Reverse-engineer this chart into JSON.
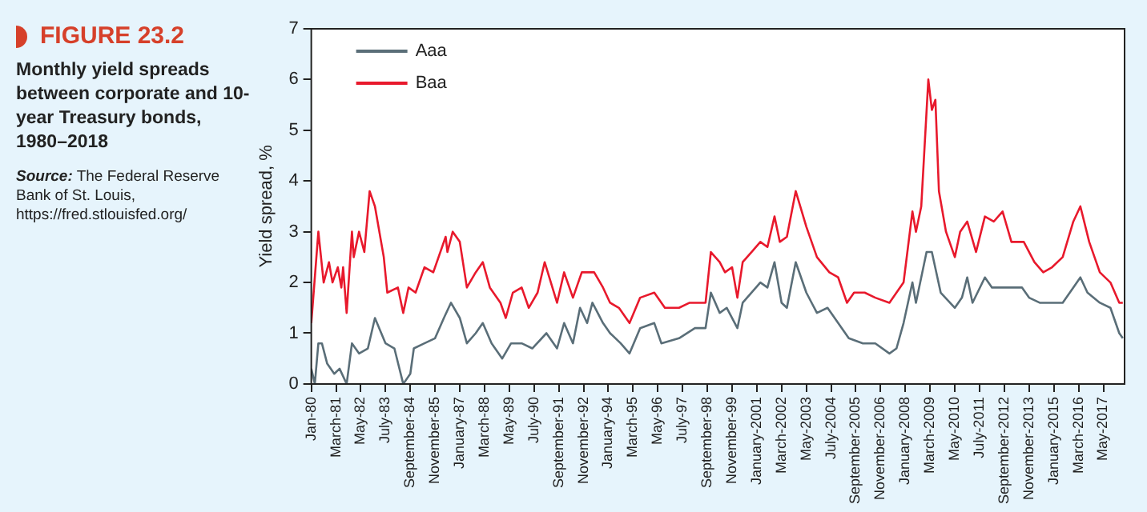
{
  "chart_data": {
    "type": "line",
    "title": "FIGURE 23.2",
    "subtitle": "Monthly yield spreads between corporate and 10-year Treasury bonds, 1980–2018",
    "ylabel": "Yield spread, %",
    "annotations": [
      "Source: The Federal Reserve Bank of St. Louis, https://fred.stlouisfed.org/"
    ],
    "xlim": [
      "1980-01",
      "2018-05"
    ],
    "ylim": [
      0,
      7
    ],
    "yticks": [
      0,
      1,
      2,
      3,
      4,
      5,
      6,
      7
    ],
    "xticks": [
      {
        "value": "1980-01",
        "label": "Jan-80"
      },
      {
        "value": "1981-03",
        "label": "March-81"
      },
      {
        "value": "1982-05",
        "label": "May-82"
      },
      {
        "value": "1983-07",
        "label": "July-83"
      },
      {
        "value": "1984-09",
        "label": "September-84"
      },
      {
        "value": "1985-11",
        "label": "November-85"
      },
      {
        "value": "1987-01",
        "label": "January-87"
      },
      {
        "value": "1988-03",
        "label": "March-88"
      },
      {
        "value": "1989-05",
        "label": "May-89"
      },
      {
        "value": "1990-07",
        "label": "July-90"
      },
      {
        "value": "1991-09",
        "label": "September-91"
      },
      {
        "value": "1992-11",
        "label": "November-92"
      },
      {
        "value": "1994-01",
        "label": "January-94"
      },
      {
        "value": "1995-03",
        "label": "March-95"
      },
      {
        "value": "1996-05",
        "label": "May-96"
      },
      {
        "value": "1997-07",
        "label": "July-97"
      },
      {
        "value": "1998-09",
        "label": "September-98"
      },
      {
        "value": "1999-11",
        "label": "November-99"
      },
      {
        "value": "2001-01",
        "label": "January-2001"
      },
      {
        "value": "2002-03",
        "label": "March-2002"
      },
      {
        "value": "2003-05",
        "label": "May-2003"
      },
      {
        "value": "2004-07",
        "label": "July-2004"
      },
      {
        "value": "2005-09",
        "label": "September-2005"
      },
      {
        "value": "2006-11",
        "label": "November-2006"
      },
      {
        "value": "2008-01",
        "label": "January-2008"
      },
      {
        "value": "2009-03",
        "label": "March-2009"
      },
      {
        "value": "2010-05",
        "label": "May-2010"
      },
      {
        "value": "2011-07",
        "label": "July-2011"
      },
      {
        "value": "2012-09",
        "label": "September-2012"
      },
      {
        "value": "2013-11",
        "label": "November-2013"
      },
      {
        "value": "2015-01",
        "label": "January-2015"
      },
      {
        "value": "2016-03",
        "label": "March-2016"
      },
      {
        "value": "2017-05",
        "label": "May-2017"
      }
    ],
    "legend": "top left",
    "marker": "none",
    "line_style": "solid",
    "series": [
      {
        "name": "Aaa",
        "color": "#5a6e78",
        "x": [
          "1980-01",
          "1980-03",
          "1980-05",
          "1980-07",
          "1980-10",
          "1981-02",
          "1981-05",
          "1981-09",
          "1981-12",
          "1982-04",
          "1982-09",
          "1983-01",
          "1983-07",
          "1983-12",
          "1984-05",
          "1984-09",
          "1984-11",
          "1985-05",
          "1985-11",
          "1986-04",
          "1986-08",
          "1987-01",
          "1987-05",
          "1987-10",
          "1988-02",
          "1988-07",
          "1989-01",
          "1989-06",
          "1989-12",
          "1990-06",
          "1991-02",
          "1991-08",
          "1991-12",
          "1992-05",
          "1992-09",
          "1993-01",
          "1993-04",
          "1993-10",
          "1994-02",
          "1994-08",
          "1995-01",
          "1995-07",
          "1996-03",
          "1996-07",
          "1997-05",
          "1998-02",
          "1998-08",
          "1998-11",
          "1999-04",
          "1999-08",
          "2000-02",
          "2000-05",
          "2001-03",
          "2001-07",
          "2001-11",
          "2002-03",
          "2002-06",
          "2002-11",
          "2003-05",
          "2003-11",
          "2004-05",
          "2004-11",
          "2005-05",
          "2006-01",
          "2006-08",
          "2007-04",
          "2007-08",
          "2007-12",
          "2008-05",
          "2008-07",
          "2009-01",
          "2009-04",
          "2009-09",
          "2010-05",
          "2010-09",
          "2010-12",
          "2011-03",
          "2011-10",
          "2012-02",
          "2012-08",
          "2013-02",
          "2013-07",
          "2013-11",
          "2014-05",
          "2014-12",
          "2015-06",
          "2015-12",
          "2016-04",
          "2016-08",
          "2017-03",
          "2017-09",
          "2018-02",
          "2018-04"
        ],
        "values": [
          0.3,
          0.0,
          0.8,
          0.8,
          0.4,
          0.2,
          0.3,
          0.0,
          0.8,
          0.6,
          0.7,
          1.3,
          0.8,
          0.7,
          0.0,
          0.2,
          0.7,
          0.8,
          0.9,
          1.3,
          1.6,
          1.3,
          0.8,
          1.0,
          1.2,
          0.8,
          0.5,
          0.8,
          0.8,
          0.7,
          1.0,
          0.7,
          1.2,
          0.8,
          1.5,
          1.2,
          1.6,
          1.2,
          1.0,
          0.8,
          0.6,
          1.1,
          1.2,
          0.8,
          0.9,
          1.1,
          1.1,
          1.8,
          1.4,
          1.5,
          1.1,
          1.6,
          2.0,
          1.9,
          2.4,
          1.6,
          1.5,
          2.4,
          1.8,
          1.4,
          1.5,
          1.2,
          0.9,
          0.8,
          0.8,
          0.6,
          0.7,
          1.2,
          2.0,
          1.6,
          2.6,
          2.6,
          1.8,
          1.5,
          1.7,
          2.1,
          1.6,
          2.1,
          1.9,
          1.9,
          1.9,
          1.9,
          1.7,
          1.6,
          1.6,
          1.6,
          1.9,
          2.1,
          1.8,
          1.6,
          1.5,
          1.0,
          0.9
        ]
      },
      {
        "name": "Baa",
        "color": "#e8192c",
        "x": [
          "1980-01",
          "1980-05",
          "1980-08",
          "1980-11",
          "1981-01",
          "1981-04",
          "1981-06",
          "1981-07",
          "1981-09",
          "1981-12",
          "1982-01",
          "1982-04",
          "1982-07",
          "1982-08",
          "1982-10",
          "1983-01",
          "1983-06",
          "1983-08",
          "1984-02",
          "1984-05",
          "1984-08",
          "1984-12",
          "1985-05",
          "1985-10",
          "1986-05",
          "1986-06",
          "1986-09",
          "1987-01",
          "1987-05",
          "1987-10",
          "1988-02",
          "1988-06",
          "1988-12",
          "1989-03",
          "1989-07",
          "1989-12",
          "1990-04",
          "1990-09",
          "1991-01",
          "1991-08",
          "1991-12",
          "1992-05",
          "1992-10",
          "1993-05",
          "1993-10",
          "1994-02",
          "1994-07",
          "1995-01",
          "1995-07",
          "1996-03",
          "1996-09",
          "1997-05",
          "1997-11",
          "1998-08",
          "1998-11",
          "1999-04",
          "1999-07",
          "1999-11",
          "2000-02",
          "2000-05",
          "2000-10",
          "2001-03",
          "2001-07",
          "2001-11",
          "2002-02",
          "2002-06",
          "2002-11",
          "2003-05",
          "2003-11",
          "2004-06",
          "2004-11",
          "2005-04",
          "2005-08",
          "2006-02",
          "2006-08",
          "2007-04",
          "2007-08",
          "2007-12",
          "2008-05",
          "2008-07",
          "2008-10",
          "2009-02",
          "2009-04",
          "2009-06",
          "2009-08",
          "2009-12",
          "2010-05",
          "2010-08",
          "2010-12",
          "2011-05",
          "2011-10",
          "2012-03",
          "2012-08",
          "2013-01",
          "2013-08",
          "2014-02",
          "2014-07",
          "2014-12",
          "2015-06",
          "2015-12",
          "2016-04",
          "2016-09",
          "2017-03",
          "2017-09",
          "2018-02",
          "2018-04"
        ],
        "values": [
          1.2,
          3.0,
          2.0,
          2.4,
          2.0,
          2.3,
          1.9,
          2.3,
          1.4,
          3.0,
          2.5,
          3.0,
          2.6,
          3.0,
          3.8,
          3.5,
          2.5,
          1.8,
          1.9,
          1.4,
          1.9,
          1.8,
          2.3,
          2.2,
          2.9,
          2.6,
          3.0,
          2.8,
          1.9,
          2.2,
          2.4,
          1.9,
          1.6,
          1.3,
          1.8,
          1.9,
          1.5,
          1.8,
          2.4,
          1.6,
          2.2,
          1.7,
          2.2,
          2.2,
          1.9,
          1.6,
          1.5,
          1.2,
          1.7,
          1.8,
          1.5,
          1.5,
          1.6,
          1.6,
          2.6,
          2.4,
          2.2,
          2.3,
          1.7,
          2.4,
          2.6,
          2.8,
          2.7,
          3.3,
          2.8,
          2.9,
          3.8,
          3.1,
          2.5,
          2.2,
          2.1,
          1.6,
          1.8,
          1.8,
          1.7,
          1.6,
          1.8,
          2.0,
          3.4,
          3.0,
          3.5,
          6.0,
          5.4,
          5.6,
          3.8,
          3.0,
          2.5,
          3.0,
          3.2,
          2.6,
          3.3,
          3.2,
          3.4,
          2.8,
          2.8,
          2.4,
          2.2,
          2.3,
          2.5,
          3.2,
          3.5,
          2.8,
          2.2,
          2.0,
          1.6,
          1.6
        ]
      }
    ]
  }
}
